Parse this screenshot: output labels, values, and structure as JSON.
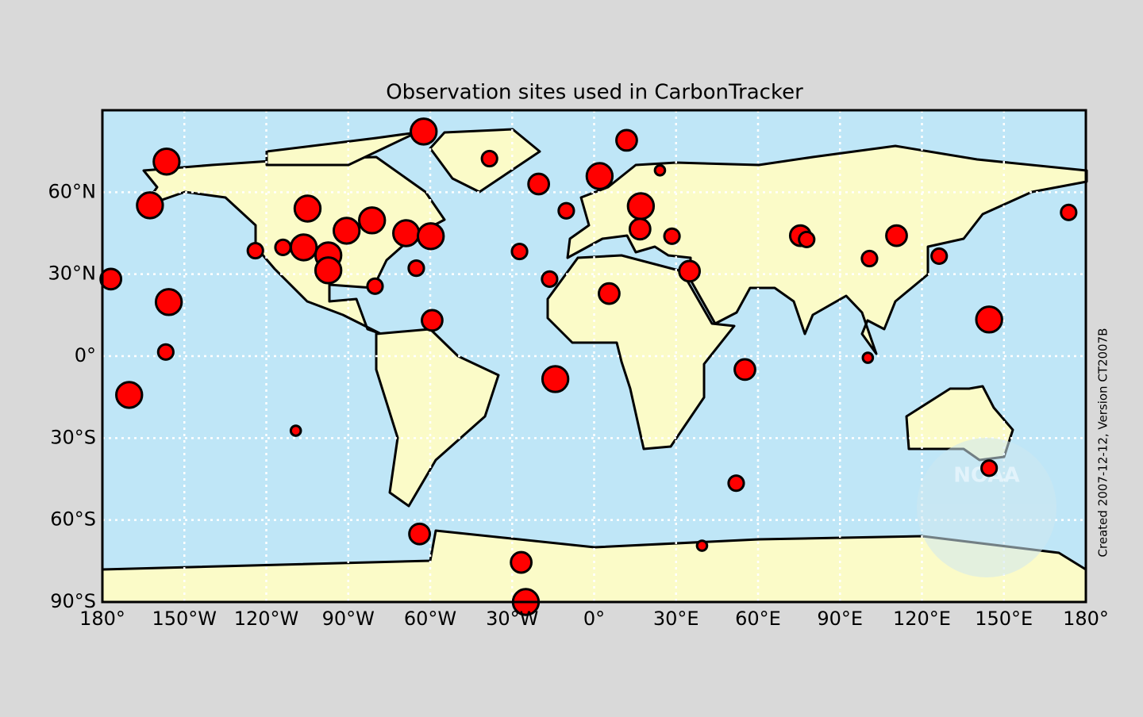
{
  "chart_data": {
    "type": "scatter",
    "title": "Observation sites used in CarbonTracker",
    "annotation": "Created 2007-12-12, Version CT2007B",
    "logo_text": "NOAA",
    "xlim": [
      -180,
      180
    ],
    "ylim": [
      -90,
      90
    ],
    "xticks": [
      {
        "value": -180,
        "label": "180°"
      },
      {
        "value": -150,
        "label": "150°W"
      },
      {
        "value": -120,
        "label": "120°W"
      },
      {
        "value": -90,
        "label": "90°W"
      },
      {
        "value": -60,
        "label": "60°W"
      },
      {
        "value": -30,
        "label": "30°W"
      },
      {
        "value": 0,
        "label": "0°"
      },
      {
        "value": 30,
        "label": "30°E"
      },
      {
        "value": 60,
        "label": "60°E"
      },
      {
        "value": 90,
        "label": "90°E"
      },
      {
        "value": 120,
        "label": "120°E"
      },
      {
        "value": 150,
        "label": "150°E"
      },
      {
        "value": 180,
        "label": "180°"
      }
    ],
    "yticks": [
      {
        "value": -90,
        "label": "90°S"
      },
      {
        "value": -60,
        "label": "60°S"
      },
      {
        "value": -30,
        "label": "30°S"
      },
      {
        "value": 0,
        "label": "0°"
      },
      {
        "value": 30,
        "label": "30°N"
      },
      {
        "value": 60,
        "label": "60°N"
      }
    ],
    "grid": true,
    "color": "#ff0000",
    "x": [
      -62.4,
      -38.3,
      11.9,
      2.0,
      -20.3,
      24.1,
      -156.5,
      -162.6,
      -104.9,
      -81.3,
      -90.6,
      -68.8,
      -59.8,
      -106.3,
      -113.9,
      -124.0,
      -97.3,
      -97.3,
      -80.2,
      -65.1,
      -176.9,
      -155.7,
      -156.8,
      -170.2,
      -109.2,
      -59.3,
      -27.3,
      -16.3,
      -14.2,
      -10.2,
      17.1,
      16.8,
      28.5,
      5.5,
      34.9,
      55.2,
      52.0,
      39.5,
      -63.9,
      -26.7,
      -25.0,
      75.5,
      77.8,
      110.7,
      100.8,
      126.3,
      173.7,
      144.6,
      144.6,
      100.2
    ],
    "values": [
      82.2,
      72.3,
      79.0,
      65.9,
      63.0,
      68.0,
      71.2,
      55.2,
      54.0,
      49.7,
      45.9,
      45.0,
      43.9,
      39.8,
      39.8,
      38.6,
      36.9,
      31.4,
      25.6,
      32.2,
      28.2,
      19.8,
      1.5,
      -14.2,
      -27.3,
      13.1,
      38.3,
      28.2,
      -8.4,
      53.2,
      54.9,
      46.5,
      43.9,
      22.9,
      31.1,
      -4.9,
      -46.5,
      -69.4,
      -65.1,
      -75.5,
      -90,
      44.1,
      42.7,
      44.1,
      35.7,
      36.6,
      52.6,
      13.4,
      -41.0,
      -0.6
    ],
    "sizes": [
      4,
      2,
      3,
      4,
      3,
      1,
      4,
      4,
      4,
      4,
      4,
      4,
      4,
      4,
      2,
      2,
      4,
      4,
      2,
      2,
      3,
      4,
      2,
      4,
      1,
      3,
      2,
      2,
      4,
      2,
      4,
      3,
      2,
      3,
      3,
      3,
      2,
      1,
      3,
      3,
      4,
      3,
      2,
      3,
      2,
      2,
      2,
      4,
      2,
      1
    ]
  }
}
